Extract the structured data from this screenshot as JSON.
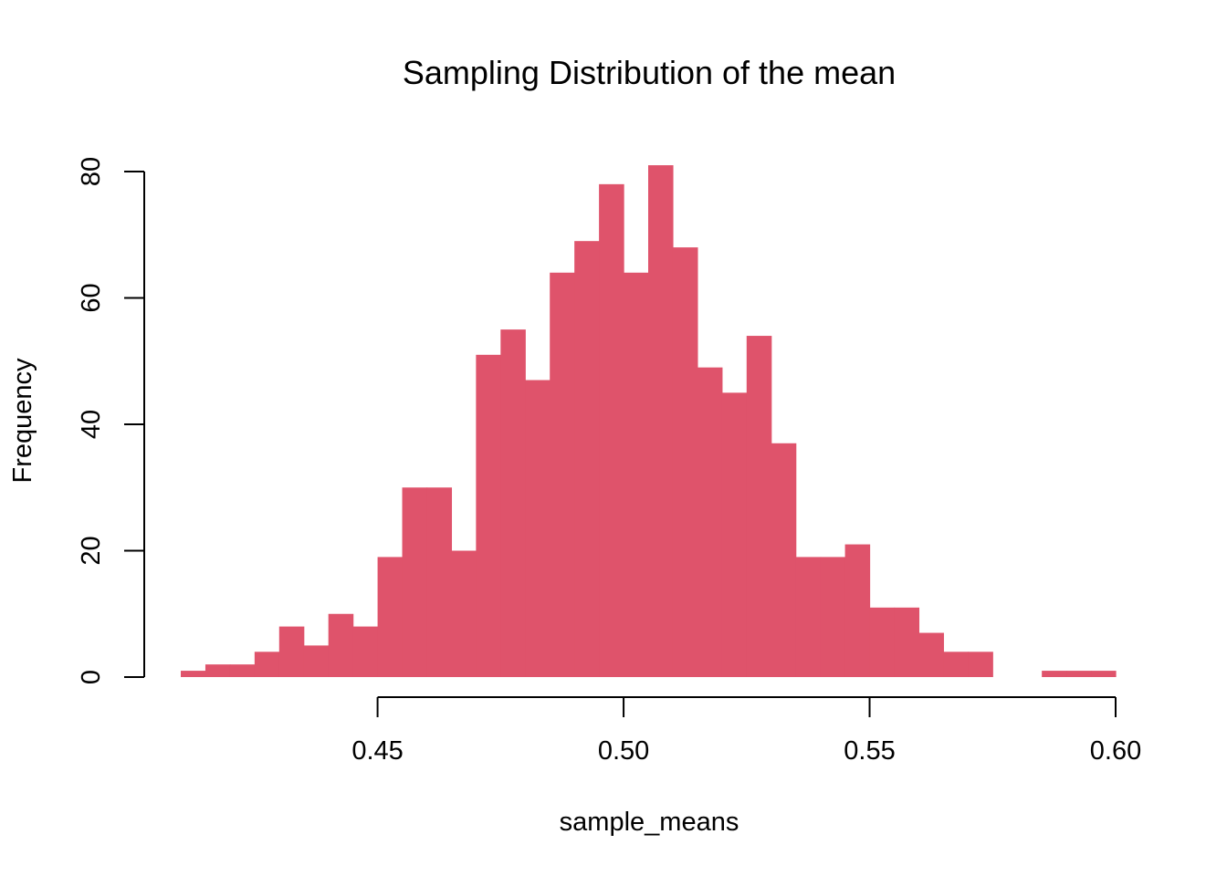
{
  "chart_data": {
    "type": "bar",
    "title": "Sampling Distribution of the mean",
    "xlabel": "sample_means",
    "ylabel": "Frequency",
    "bar_color": "#DF536B",
    "bin_width": 0.005,
    "bins_start": [
      0.41,
      0.415,
      0.42,
      0.425,
      0.43,
      0.435,
      0.44,
      0.445,
      0.45,
      0.455,
      0.46,
      0.465,
      0.47,
      0.475,
      0.48,
      0.485,
      0.49,
      0.495,
      0.5,
      0.505,
      0.51,
      0.515,
      0.52,
      0.525,
      0.53,
      0.535,
      0.54,
      0.545,
      0.55,
      0.555,
      0.56,
      0.565,
      0.57,
      0.575,
      0.58,
      0.585,
      0.59,
      0.595
    ],
    "values": [
      1,
      2,
      2,
      4,
      8,
      5,
      10,
      8,
      19,
      30,
      30,
      20,
      51,
      55,
      47,
      64,
      69,
      78,
      64,
      81,
      68,
      49,
      45,
      54,
      37,
      19,
      19,
      21,
      11,
      11,
      7,
      4,
      4,
      0,
      0,
      1,
      1,
      1
    ],
    "xlim": [
      0.41,
      0.6
    ],
    "ylim": [
      0,
      80
    ],
    "x_ticks": [
      0.45,
      0.5,
      0.55,
      0.6
    ],
    "x_tick_labels": [
      "0.45",
      "0.50",
      "0.55",
      "0.60"
    ],
    "y_ticks": [
      0,
      20,
      40,
      60,
      80
    ],
    "y_tick_labels": [
      "0",
      "20",
      "40",
      "60",
      "80"
    ],
    "grid": false,
    "legend": "none"
  }
}
